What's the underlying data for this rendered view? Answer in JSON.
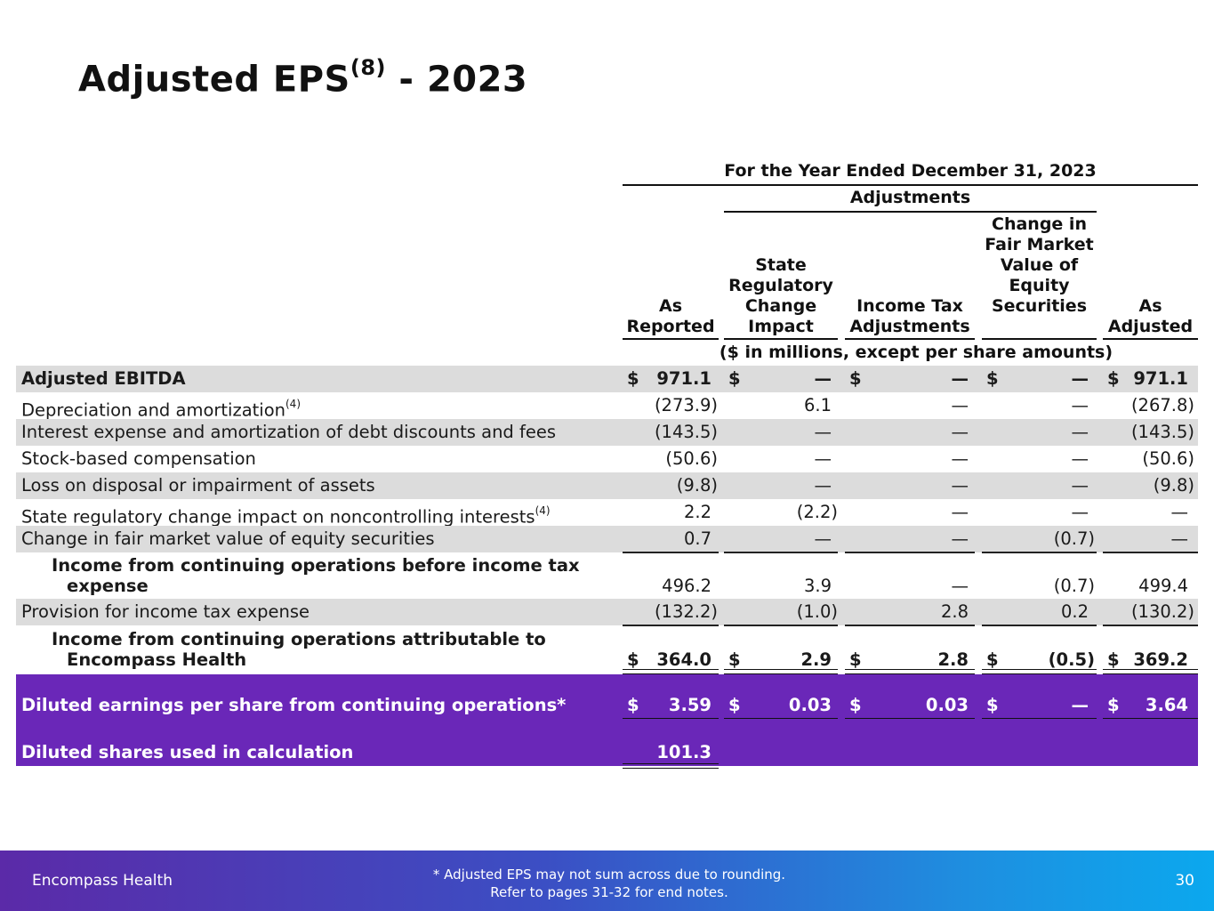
{
  "title": {
    "main": "Adjusted EPS",
    "sup": "(8)",
    "suffix": " - 2023"
  },
  "header": {
    "period": "For the Year Ended December 31, 2023",
    "adjustments": "Adjustments",
    "columns": [
      {
        "label": "As Reported"
      },
      {
        "label": "State Regulatory Change Impact"
      },
      {
        "label": "Income Tax Adjustments"
      },
      {
        "label": "Change in Fair Market Value of Equity Securities"
      },
      {
        "label": "As Adjusted"
      }
    ],
    "units": "($ in millions, except per share amounts)"
  },
  "rows": [
    {
      "label": "Adjusted EBITDA",
      "sup": "",
      "values": [
        "971.1",
        "—",
        "—",
        "—",
        "971.1"
      ],
      "dollar": true
    },
    {
      "label": "Depreciation and amortization",
      "sup": "(4)",
      "values": [
        "(273.9)",
        "6.1",
        "—",
        "—",
        "(267.8)"
      ]
    },
    {
      "label": "Interest expense and amortization of debt discounts and fees",
      "sup": "",
      "values": [
        "(143.5)",
        "—",
        "—",
        "—",
        "(143.5)"
      ]
    },
    {
      "label": "Stock-based compensation",
      "sup": "",
      "values": [
        "(50.6)",
        "—",
        "—",
        "—",
        "(50.6)"
      ]
    },
    {
      "label": "Loss on disposal or impairment of assets",
      "sup": "",
      "values": [
        "(9.8)",
        "—",
        "—",
        "—",
        "(9.8)"
      ]
    },
    {
      "label": "State regulatory change impact on noncontrolling interests",
      "sup": "(4)",
      "values": [
        "2.2",
        "(2.2)",
        "—",
        "—",
        "—"
      ]
    },
    {
      "label": "Change in fair market value of equity securities",
      "sup": "",
      "values": [
        "0.7",
        "—",
        "—",
        "(0.7)",
        "—"
      ]
    },
    {
      "label_line1": "Income from continuing operations before income tax",
      "label_line2": "expense",
      "values": [
        "496.2",
        "3.9",
        "—",
        "(0.7)",
        "499.4"
      ]
    },
    {
      "label": "Provision for income tax expense",
      "sup": "",
      "values": [
        "(132.2)",
        "(1.0)",
        "2.8",
        "0.2",
        "(130.2)"
      ]
    },
    {
      "label_line1": "Income from continuing operations attributable to",
      "label_line2": "Encompass Health",
      "values": [
        "364.0",
        "2.9",
        "2.8",
        "(0.5)",
        "369.2"
      ],
      "dollar": true
    },
    {
      "label": "Diluted earnings per share from continuing operations*",
      "values": [
        "3.59",
        "0.03",
        "0.03",
        "—",
        "3.64"
      ],
      "dollar": true
    },
    {
      "label": "Diluted shares used in calculation",
      "values": [
        "101.3"
      ]
    }
  ],
  "dollar_sign": "$",
  "footer": {
    "brand": "Encompass Health",
    "note_line1": "*  Adjusted EPS may not sum across due to rounding.",
    "note_line2": "Refer to pages 31-32 for end notes.",
    "page": "30"
  },
  "colors": {
    "accent_purple": "#6a27b8",
    "row_gray": "#dcdcdc",
    "footer_start": "#5b2aa8",
    "footer_end": "#0ba8ee"
  }
}
